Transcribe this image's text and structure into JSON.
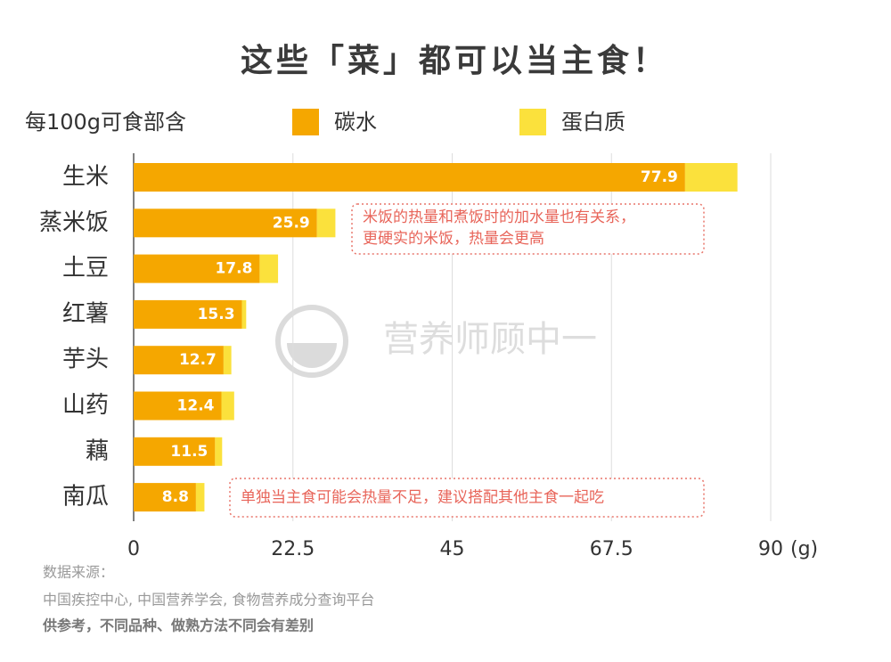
{
  "chart_data": {
    "type": "bar",
    "orientation": "horizontal",
    "stacked": true,
    "title": "这些「菜」都可以当主食！",
    "subtitle": "每100g可食部含",
    "categories": [
      "生米",
      "蒸米饭",
      "土豆",
      "红薯",
      "芋头",
      "山药",
      "藕",
      "南瓜"
    ],
    "series": [
      {
        "name": "碳水",
        "color": "#f5a700",
        "values": [
          77.9,
          25.9,
          17.8,
          15.3,
          12.7,
          12.4,
          11.5,
          8.8
        ],
        "show_value_labels": true
      },
      {
        "name": "蛋白质",
        "color": "#fbe13c",
        "values": [
          7.4,
          2.6,
          2.6,
          0.6,
          1.1,
          1.8,
          1.0,
          1.2
        ],
        "show_value_labels": false
      }
    ],
    "xlim": [
      0,
      90
    ],
    "xticks": [
      0,
      22.5,
      45,
      67.5,
      90
    ],
    "x_unit": "(g)",
    "grid": true,
    "annotations": [
      {
        "lines": [
          "米饭的热量和煮饭时的加水量也有关系，",
          "更硬实的米饭，热量会更高"
        ]
      },
      {
        "lines": [
          "单独当主食可能会热量不足，建议搭配其他主食一起吃"
        ]
      }
    ],
    "watermark": "营养师顾中一",
    "source": {
      "label": "数据来源：",
      "text": "中国疾控中心, 中国营养学会, 食物营养成分查询平台",
      "note": "供参考，不同品种、做熟方法不同会有差别"
    }
  }
}
